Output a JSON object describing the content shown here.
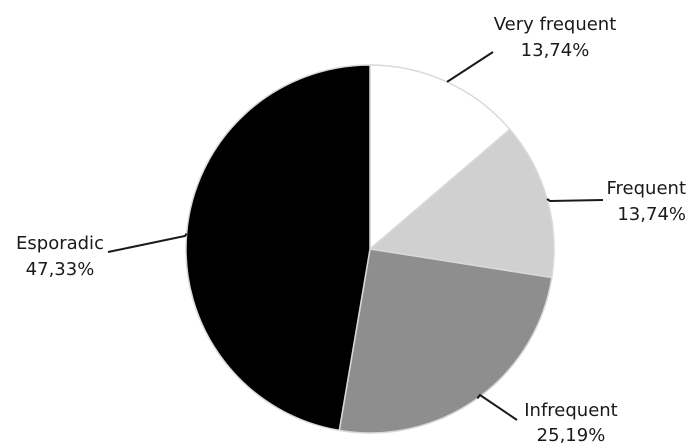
{
  "chart_data": {
    "type": "pie",
    "title": "",
    "start_angle_deg": 0,
    "direction": "clockwise",
    "slices": [
      {
        "label": "Very frequent",
        "value": 13.74,
        "value_label": "13,74%",
        "color": "#ffffff"
      },
      {
        "label": "Frequent",
        "value": 13.74,
        "value_label": "13,74%",
        "color": "#d0d0d0"
      },
      {
        "label": "Infrequent",
        "value": 25.19,
        "value_label": "25,19%",
        "color": "#8e8e8e"
      },
      {
        "label": "Esporadic",
        "value": 47.33,
        "value_label": "47,33%",
        "color": "#000000"
      }
    ],
    "slice_border_color": "#d9d9d9",
    "leader_line_color": "#1a1a1a"
  }
}
